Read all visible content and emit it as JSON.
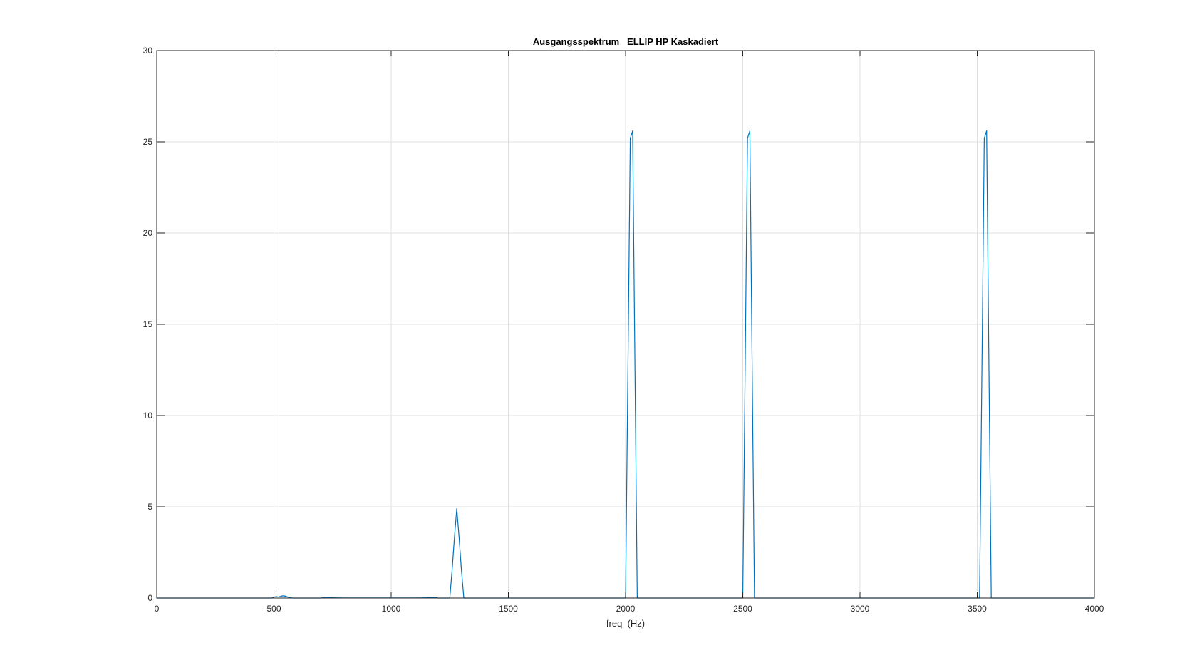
{
  "chart_data": {
    "type": "line",
    "title": "Ausgangsspektrum   ELLIP HP Kaskadiert",
    "xlabel": "freq  (Hz)",
    "ylabel": "",
    "xlim": [
      0,
      4000
    ],
    "ylim": [
      0,
      30
    ],
    "xticks": [
      "0",
      "500",
      "1000",
      "1500",
      "2000",
      "2500",
      "3000",
      "3500",
      "4000"
    ],
    "yticks": [
      "0",
      "5",
      "10",
      "15",
      "20",
      "25",
      "30"
    ],
    "grid": true,
    "legend": "none",
    "colors": {
      "series": "#0072BD",
      "axes": "#262626",
      "grid": "#DFDFDF",
      "background": "#FFFFFF"
    },
    "series": [
      {
        "x": [
          0,
          490,
          500,
          510,
          520,
          530,
          540,
          550,
          560,
          570,
          580,
          700,
          720,
          800,
          900,
          1000,
          1100,
          1190,
          1200,
          1250,
          1260,
          1270,
          1280,
          1290,
          1300,
          1310,
          1320,
          1990,
          2000,
          2010,
          2020,
          2030,
          2040,
          2050,
          2060,
          2070,
          2080,
          2480,
          2490,
          2500,
          2510,
          2520,
          2530,
          2540,
          2550,
          2560,
          2570,
          3480,
          3490,
          3500,
          3510,
          3520,
          3530,
          3540,
          3550,
          3560,
          3570,
          4000
        ],
        "y": [
          0,
          0,
          0.05,
          0.08,
          0.05,
          0.1,
          0.12,
          0.1,
          0.05,
          0.02,
          0,
          0,
          0.04,
          0.05,
          0.05,
          0.05,
          0.05,
          0.04,
          0,
          0,
          1.5,
          3.3,
          4.9,
          3.3,
          1.5,
          0,
          0,
          0,
          0,
          12.5,
          25.2,
          25.6,
          12.5,
          0,
          0,
          0,
          0,
          0,
          0,
          0,
          12.5,
          25.2,
          25.6,
          12.5,
          0,
          0,
          0,
          0,
          0,
          0,
          0,
          12.5,
          25.2,
          25.6,
          12.5,
          0,
          0,
          0
        ]
      }
    ]
  }
}
